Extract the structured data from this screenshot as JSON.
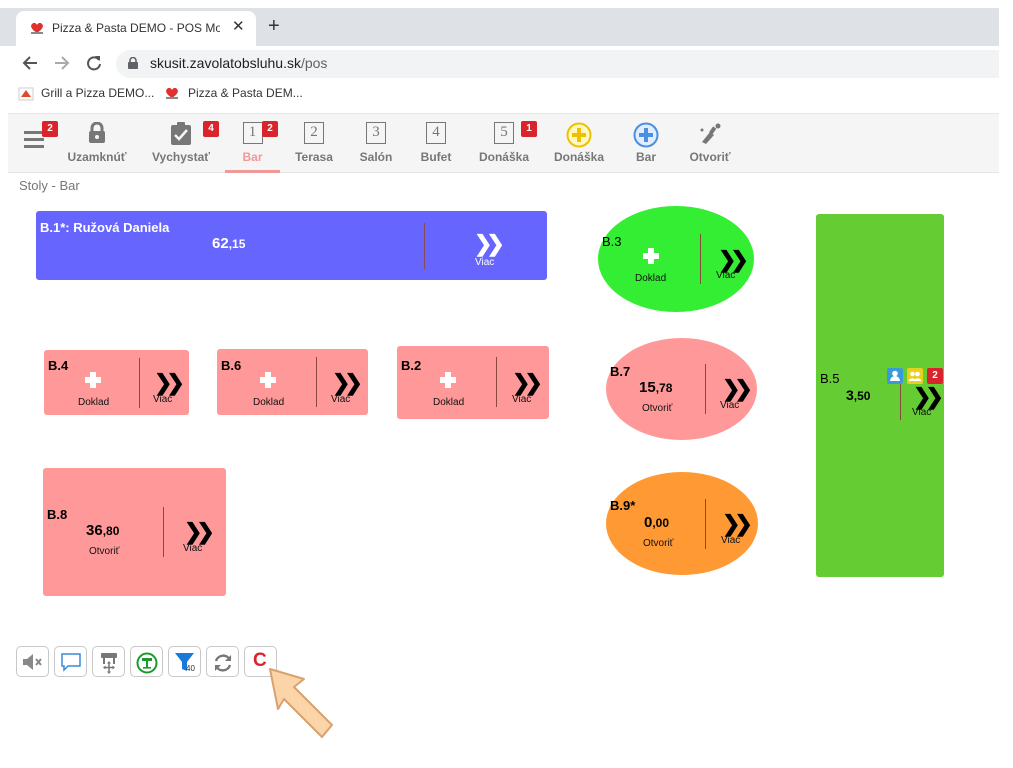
{
  "browser": {
    "tab_title": "Pizza & Pasta DEMO - POS Mobil",
    "tab_close": "✕",
    "new_tab": "+",
    "url_host": "skusit.zavolatobsluhu.sk",
    "url_path": "/pos",
    "bookmarks": [
      "Grill a Pizza DEMO...",
      "Pizza & Pasta DEM..."
    ]
  },
  "nav": {
    "menu_badge": "2",
    "items": [
      {
        "label": "Uzamknúť",
        "icon": "lock-icon"
      },
      {
        "label": "Vychystať",
        "icon": "clipboard-check-icon",
        "badge": "4"
      },
      {
        "label": "Bar",
        "number": "1",
        "badge": "2",
        "active": true
      },
      {
        "label": "Terasa",
        "number": "2"
      },
      {
        "label": "Salón",
        "number": "3"
      },
      {
        "label": "Bufet",
        "number": "4"
      },
      {
        "label": "Donáška",
        "number": "5",
        "badge": "1"
      },
      {
        "label": "Donáška",
        "icon": "plus-circle-yellow-icon"
      },
      {
        "label": "Bar",
        "icon": "plus-circle-blue-icon"
      },
      {
        "label": "Otvoriť",
        "icon": "key-bottle-icon"
      }
    ]
  },
  "breadcrumb": "Stoly - Bar",
  "tables": {
    "b1": {
      "name": "B.1*: Ružová Daniela",
      "amount_int": "62",
      "amount_dec": ",15",
      "more": "Viac",
      "color": "#6666ff"
    },
    "b3": {
      "name": "B.3",
      "action": "Doklad",
      "more": "Viac",
      "color": "#33ee33"
    },
    "b4": {
      "name": "B.4",
      "action": "Doklad",
      "more": "Viac",
      "color": "#ff9999"
    },
    "b6": {
      "name": "B.6",
      "action": "Doklad",
      "more": "Viac",
      "color": "#ff9999"
    },
    "b2": {
      "name": "B.2",
      "action": "Doklad",
      "more": "Viac",
      "color": "#ff9999"
    },
    "b7": {
      "name": "B.7",
      "amount_int": "15",
      "amount_dec": ",78",
      "action": "Otvoriť",
      "more": "Viac",
      "color": "#ff9999"
    },
    "b9": {
      "name": "B.9*",
      "amount_int": "0",
      "amount_dec": ",00",
      "action": "Otvoriť",
      "more": "Viac",
      "color": "#ff9933"
    },
    "b8": {
      "name": "B.8",
      "amount_int": "36",
      "amount_dec": ",80",
      "action": "Otvoriť",
      "more": "Viac",
      "color": "#ff9999"
    },
    "b5": {
      "name": "B.5",
      "amount_int": "3",
      "amount_dec": ",50",
      "more": "Viac",
      "badge": "2",
      "color": "#66cc33"
    }
  },
  "toolbar": {
    "buttons": [
      "mute-icon",
      "chat-icon",
      "move-table-icon",
      "table-info-icon",
      "filter-icon",
      "refresh-icon",
      "clear-icon"
    ],
    "filter_count": "40",
    "clear_label": "C"
  }
}
